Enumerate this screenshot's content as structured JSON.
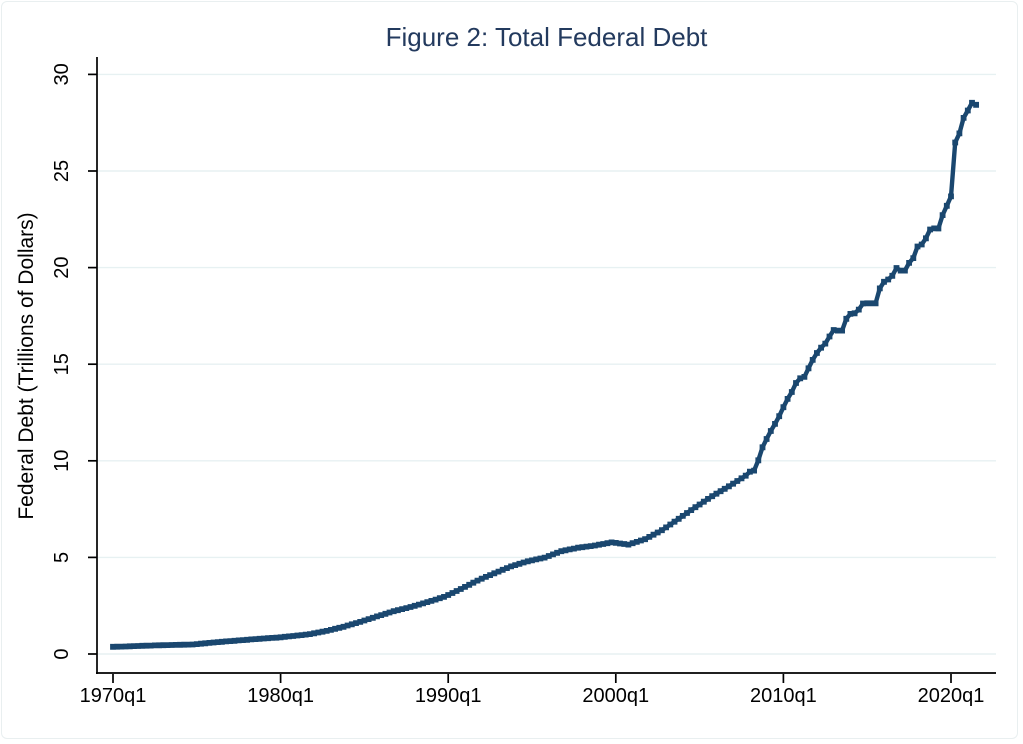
{
  "figure": {
    "title": "Figure 2: Total Federal Debt",
    "y_axis_title": "Federal Debt (Trillions of Dollars)"
  },
  "colors": {
    "title": "#233a5e",
    "line": "#1a476f",
    "grid": "#e7f1f2",
    "axis": "#000000",
    "background": "#ffffff"
  },
  "chart_data": {
    "type": "line",
    "title": "Figure 2: Total Federal Debt",
    "xlabel": "",
    "ylabel": "Federal Debt (Trillions of Dollars)",
    "x_unit": "quarter",
    "x_start": "1970q1",
    "x_end": "2021q3",
    "x_tick_labels": [
      "1970q1",
      "1980q1",
      "1990q1",
      "2000q1",
      "2010q1",
      "2020q1"
    ],
    "x_tick_indices": [
      0,
      40,
      80,
      120,
      160,
      200
    ],
    "y_ticks": [
      0,
      5,
      10,
      15,
      20,
      25,
      30
    ],
    "ylim": [
      0,
      30
    ],
    "grid": "horizontal",
    "legend": "none",
    "series": [
      {
        "name": "Total Federal Debt",
        "color": "#1a476f",
        "values": [
          0.373,
          0.378,
          0.384,
          0.389,
          0.398,
          0.407,
          0.415,
          0.424,
          0.43,
          0.436,
          0.443,
          0.449,
          0.454,
          0.459,
          0.464,
          0.469,
          0.475,
          0.481,
          0.486,
          0.492,
          0.513,
          0.535,
          0.556,
          0.577,
          0.596,
          0.615,
          0.634,
          0.653,
          0.669,
          0.685,
          0.702,
          0.718,
          0.736,
          0.754,
          0.771,
          0.789,
          0.803,
          0.817,
          0.831,
          0.845,
          0.866,
          0.888,
          0.909,
          0.93,
          0.955,
          0.979,
          1.004,
          1.028,
          1.07,
          1.113,
          1.155,
          1.197,
          1.25,
          1.304,
          1.357,
          1.41,
          1.473,
          1.537,
          1.6,
          1.663,
          1.734,
          1.804,
          1.875,
          1.945,
          2.012,
          2.08,
          2.147,
          2.214,
          2.268,
          2.323,
          2.377,
          2.431,
          2.494,
          2.558,
          2.621,
          2.684,
          2.751,
          2.818,
          2.886,
          2.953,
          3.056,
          3.159,
          3.262,
          3.365,
          3.474,
          3.583,
          3.692,
          3.801,
          3.895,
          3.989,
          4.083,
          4.177,
          4.267,
          4.357,
          4.446,
          4.536,
          4.602,
          4.668,
          4.734,
          4.8,
          4.847,
          4.894,
          4.942,
          4.989,
          5.073,
          5.156,
          5.24,
          5.323,
          5.368,
          5.413,
          5.457,
          5.502,
          5.53,
          5.558,
          5.586,
          5.614,
          5.655,
          5.695,
          5.736,
          5.776,
          5.748,
          5.719,
          5.691,
          5.662,
          5.733,
          5.803,
          5.873,
          5.943,
          6.059,
          6.175,
          6.29,
          6.406,
          6.554,
          6.702,
          6.85,
          6.998,
          7.148,
          7.297,
          7.447,
          7.596,
          7.74,
          7.883,
          8.027,
          8.17,
          8.298,
          8.425,
          8.553,
          8.68,
          8.817,
          8.954,
          9.092,
          9.229,
          9.438,
          9.492,
          10.025,
          10.7,
          11.127,
          11.545,
          11.91,
          12.311,
          12.773,
          13.202,
          13.562,
          14.025,
          14.27,
          14.343,
          14.79,
          15.223,
          15.582,
          15.856,
          16.066,
          16.433,
          16.772,
          16.738,
          16.738,
          17.352,
          17.601,
          17.633,
          17.824,
          18.141,
          18.152,
          18.152,
          18.151,
          18.922,
          19.265,
          19.382,
          19.573,
          19.977,
          19.846,
          19.845,
          20.245,
          20.493,
          21.09,
          21.195,
          21.516,
          21.974,
          22.028,
          22.023,
          22.719,
          23.201,
          23.687,
          26.477,
          26.945,
          27.748,
          28.133,
          28.529,
          28.429
        ]
      }
    ]
  }
}
